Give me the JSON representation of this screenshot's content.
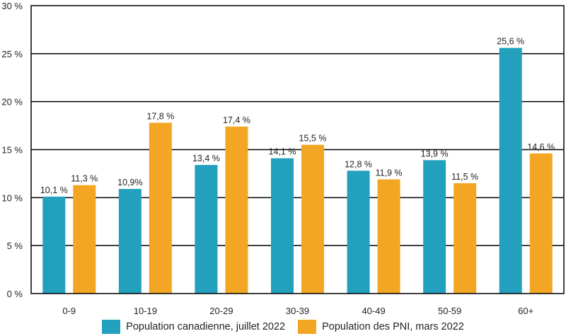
{
  "chart_data": {
    "type": "bar",
    "title": "",
    "xlabel": "",
    "ylabel": "",
    "ylim": [
      0,
      30
    ],
    "yticks": [
      0,
      5,
      10,
      15,
      20,
      25,
      30
    ],
    "ytick_labels": [
      "0 %",
      "5 %",
      "10 %",
      "15 %",
      "20 %",
      "25 %",
      "30 %"
    ],
    "grid": true,
    "legend_position": "bottom",
    "categories": [
      "0-9",
      "10-19",
      "20-29",
      "30-39",
      "40-49",
      "50-59",
      "60+"
    ],
    "series": [
      {
        "name": "Population canadienne, juillet 2022",
        "color": "#23a0bd",
        "values": [
          10.1,
          10.9,
          13.4,
          14.1,
          12.8,
          13.9,
          25.6
        ],
        "labels": [
          "10,1 %",
          "10,9%",
          "13,4 %",
          "14,1 %",
          "12,8 %",
          "13,9 %",
          "25,6 %"
        ]
      },
      {
        "name": "Population des PNI, mars 2022",
        "color": "#f3a623",
        "values": [
          11.3,
          17.8,
          17.4,
          15.5,
          11.9,
          11.5,
          14.6
        ],
        "labels": [
          "11,3 %",
          "17,8 %",
          "17,4 %",
          "15,5 %",
          "11,9 %",
          "11,5 %",
          "14,6 %"
        ]
      }
    ]
  }
}
